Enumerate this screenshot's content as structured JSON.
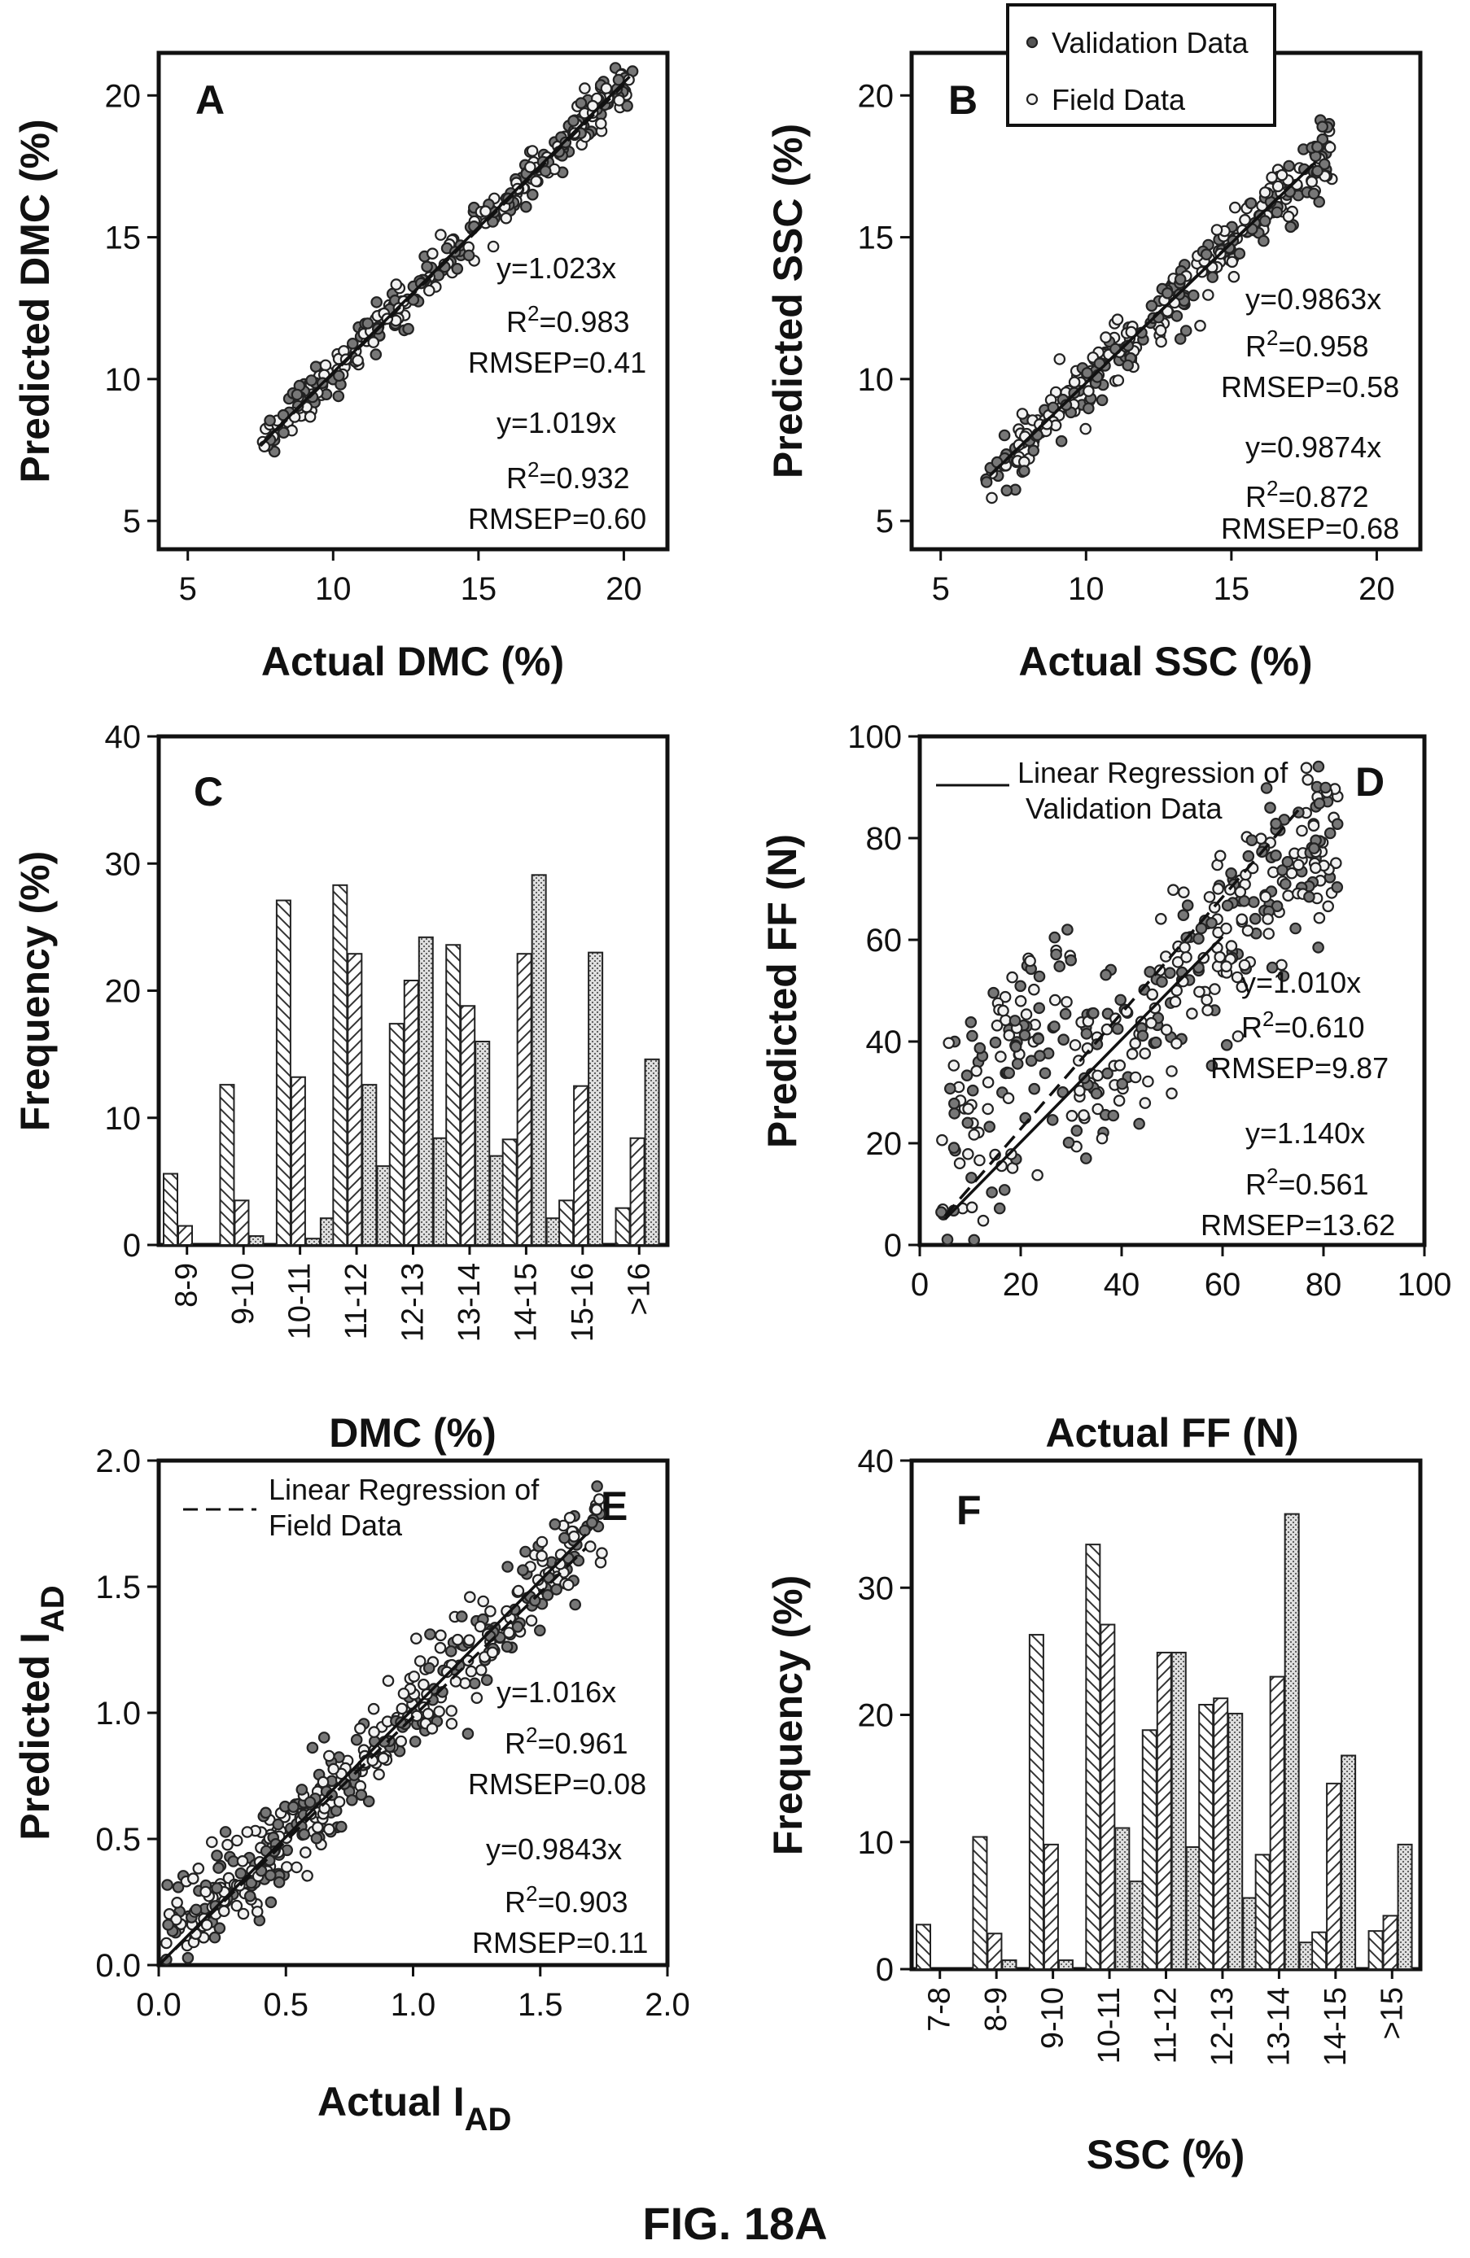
{
  "figure_caption": "FIG. 18A",
  "legend_top": {
    "validation": "Validation Data",
    "field": "Field Data"
  },
  "chart_data": [
    {
      "id": "A",
      "type": "scatter",
      "letter": "A",
      "xlabel": "Actual DMC (%)",
      "ylabel": "Predicted DMC (%)",
      "xlim": [
        4,
        21.5
      ],
      "ylim": [
        4,
        21.5
      ],
      "xticks": [
        5,
        10,
        15,
        20
      ],
      "yticks": [
        5,
        10,
        15,
        20
      ],
      "points": {
        "count": 320,
        "xrange": [
          7.5,
          20.4
        ],
        "slope": 1.023,
        "spread": 0.42
      },
      "fit_lines": [
        {
          "slope": 1.023,
          "x": [
            7.5,
            20.2
          ]
        },
        {
          "slope": 1.019,
          "x": [
            7.5,
            20.0
          ]
        }
      ],
      "stats": [
        {
          "eq": "y=1.023x",
          "r2": "=0.983",
          "rmsep": "RMSEP=0.41"
        },
        {
          "eq": "y=1.019x",
          "r2": "=0.932",
          "rmsep": "RMSEP=0.60"
        }
      ]
    },
    {
      "id": "B",
      "type": "scatter",
      "letter": "B",
      "xlabel": "Actual SSC (%)",
      "ylabel": "Predicted SSC (%)",
      "xlim": [
        4,
        21.5
      ],
      "ylim": [
        4,
        21.5
      ],
      "xticks": [
        5,
        10,
        15,
        20
      ],
      "yticks": [
        5,
        10,
        15,
        20
      ],
      "points": {
        "count": 320,
        "xrange": [
          6.5,
          18.5
        ],
        "slope": 0.9863,
        "spread": 0.55
      },
      "fit_lines": [
        {
          "slope": 0.9863,
          "x": [
            6.7,
            17.9
          ]
        },
        {
          "slope": 0.9874,
          "x": [
            6.7,
            17.9
          ]
        }
      ],
      "stats": [
        {
          "eq": "y=0.9863x",
          "r2": "=0.958",
          "rmsep": "RMSEP=0.58"
        },
        {
          "eq": "y=0.9874x",
          "r2": "=0.872",
          "rmsep": "RMSEP=0.68"
        }
      ]
    },
    {
      "id": "C",
      "type": "bar",
      "letter": "C",
      "xlabel": "DMC (%)",
      "ylabel": "Frequency (%)",
      "ylim": [
        0,
        40
      ],
      "yticks": [
        0,
        10,
        20,
        30,
        40
      ],
      "categories": [
        "8-9",
        "9-10",
        "10-11",
        "11-12",
        "12-13",
        "13-14",
        "14-15",
        "15-16",
        ">16"
      ],
      "series": [
        {
          "values": [
            5.6,
            12.6,
            27.1,
            28.3,
            17.4,
            23.6,
            8.3,
            3.5,
            2.9
          ],
          "pattern": "back"
        },
        {
          "values": [
            1.5,
            3.5,
            13.2,
            22.9,
            20.8,
            18.8,
            22.9,
            12.5,
            8.4
          ],
          "pattern": "fwd"
        },
        {
          "values": [
            0,
            0.7,
            0.5,
            12.6,
            24.2,
            16.0,
            29.1,
            23.0,
            14.6
          ],
          "pattern": "dots"
        },
        {
          "values": [
            0,
            0,
            2.1,
            6.2,
            8.4,
            7.0,
            2.1,
            0,
            0
          ],
          "pattern": "dots"
        }
      ]
    },
    {
      "id": "D",
      "type": "scatter",
      "letter": "D",
      "xlabel": "Actual FF (N)",
      "ylabel": "Predicted FF (N)",
      "xlim": [
        0,
        100
      ],
      "ylim": [
        0,
        100
      ],
      "xticks": [
        0,
        20,
        40,
        60,
        80,
        100
      ],
      "yticks": [
        0,
        20,
        40,
        60,
        80,
        100
      ],
      "legend": {
        "line1": "Linear Regression of",
        "line2": "Validation Data"
      },
      "points": {
        "count": 380,
        "xrange": [
          4,
          83
        ],
        "slope": 1.01,
        "spread": 9.5
      },
      "fit_lines": [
        {
          "slope": 1.01,
          "x": [
            5,
            60
          ]
        },
        {
          "slope": 1.14,
          "x": [
            5,
            75
          ]
        }
      ],
      "stats": [
        {
          "eq": "y=1.010x",
          "r2": "=0.610",
          "rmsep": "RMSEP=9.87"
        },
        {
          "eq": "y=1.140x",
          "r2": "=0.561",
          "rmsep": "RMSEP=13.62"
        }
      ]
    },
    {
      "id": "E",
      "type": "scatter",
      "letter": "E",
      "xlabel": "Actual I",
      "xlabel_sub": "AD",
      "ylabel": "Predicted I",
      "ylabel_sub": "AD",
      "xlim": [
        0,
        2
      ],
      "ylim": [
        0,
        2
      ],
      "xticks": [
        "0.0",
        "0.5",
        "1.0",
        "1.5",
        "2.0"
      ],
      "yticks": [
        "0.0",
        "0.5",
        "1.0",
        "1.5",
        "2.0"
      ],
      "legend": {
        "line1": "Linear Regression of",
        "line2": "Field Data"
      },
      "points": {
        "count": 420,
        "xrange": [
          0.02,
          1.75
        ],
        "slope": 1.0,
        "spread": 0.09
      },
      "fit_lines": [
        {
          "slope": 1.016,
          "x": [
            0,
            1.68
          ]
        },
        {
          "slope": 0.9843,
          "x": [
            0,
            1.68
          ]
        }
      ],
      "stats": [
        {
          "eq": "y=1.016x",
          "r2": "=0.961",
          "rmsep": "RMSEP=0.08"
        },
        {
          "eq": "y=0.9843x",
          "r2": "=0.903",
          "rmsep": "RMSEP=0.11"
        }
      ]
    },
    {
      "id": "F",
      "type": "bar",
      "letter": "F",
      "xlabel": "SSC (%)",
      "ylabel": "Frequency (%)",
      "ylim": [
        0,
        40
      ],
      "yticks": [
        0,
        10,
        20,
        30,
        40
      ],
      "categories": [
        "7-8",
        "8-9",
        "9-10",
        "10-11",
        "11-12",
        "12-13",
        "13-14",
        "14-15",
        ">15"
      ],
      "series": [
        {
          "values": [
            3.5,
            10.4,
            26.3,
            33.4,
            18.8,
            20.8,
            9.0,
            2.9,
            3.0
          ],
          "pattern": "back"
        },
        {
          "values": [
            0,
            2.8,
            9.8,
            27.1,
            24.9,
            21.3,
            23.0,
            14.6,
            4.2
          ],
          "pattern": "fwd"
        },
        {
          "values": [
            0,
            0.7,
            0.7,
            11.1,
            24.9,
            20.1,
            35.8,
            16.8,
            9.8
          ],
          "pattern": "dots"
        },
        {
          "values": [
            0,
            0,
            0,
            6.9,
            9.6,
            5.6,
            2.1,
            0,
            0
          ],
          "pattern": "dots"
        }
      ]
    }
  ]
}
